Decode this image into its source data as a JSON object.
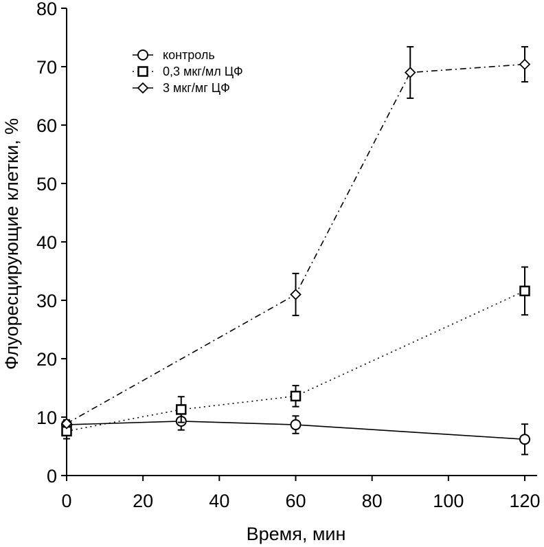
{
  "chart_data": {
    "type": "line",
    "title": "",
    "xlabel": "Время, мин",
    "ylabel": "Флуоресцирующие клетки, %",
    "xlim": [
      0,
      120
    ],
    "ylim": [
      0,
      80
    ],
    "xticks": [
      0,
      20,
      40,
      60,
      80,
      100,
      120
    ],
    "yticks": [
      0,
      10,
      20,
      30,
      40,
      50,
      60,
      70,
      80
    ],
    "grid": false,
    "legend_position": "top-left",
    "series": [
      {
        "name": "контроль",
        "marker": "circle",
        "line_style": "solid",
        "x": [
          0,
          30,
          60,
          120
        ],
        "y": [
          8.7,
          9.3,
          8.7,
          6.2
        ],
        "error": [
          0.8,
          1.5,
          1.5,
          2.6
        ]
      },
      {
        "name": "0,3 мкг/мл ЦФ",
        "marker": "square",
        "line_style": "dotted",
        "x": [
          0,
          30,
          60,
          120
        ],
        "y": [
          7.6,
          11.3,
          13.6,
          31.6
        ],
        "error": [
          1.3,
          2.2,
          1.8,
          4.1
        ]
      },
      {
        "name": "3 мкг/мг ЦФ",
        "marker": "diamond",
        "line_style": "dash-dot",
        "x": [
          0,
          60,
          90,
          120
        ],
        "y": [
          8.9,
          31.0,
          69.0,
          70.4
        ],
        "error": [
          0.6,
          3.6,
          4.4,
          3.0
        ]
      }
    ]
  }
}
